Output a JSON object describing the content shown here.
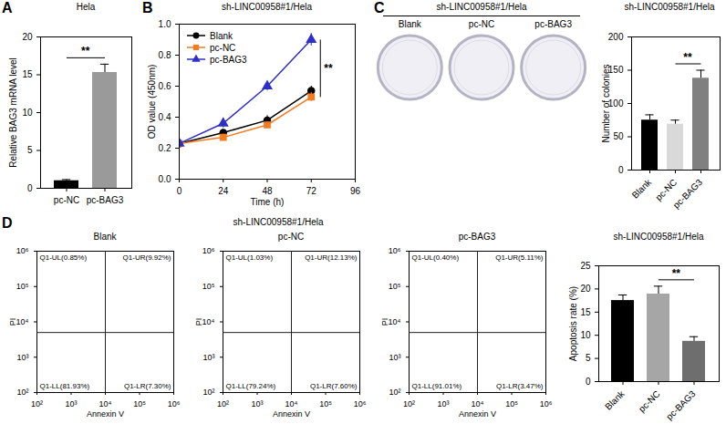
{
  "chart_data": [
    {
      "panel": "A",
      "type": "bar",
      "title": "Hela",
      "categories": [
        "pc-NC",
        "pc-BAG3"
      ],
      "values": [
        1.0,
        15.3
      ],
      "errors": [
        0.15,
        1.1
      ],
      "colors": [
        "#000000",
        "#9a9a9a"
      ],
      "y_label": "Relative BAG3 mRNA level",
      "ylim": [
        0,
        20
      ],
      "yticks": [
        0,
        5,
        10,
        15,
        20
      ],
      "annotations": [
        {
          "text": "**",
          "between": [
            "pc-NC",
            "pc-BAG3"
          ]
        }
      ]
    },
    {
      "panel": "B",
      "type": "line",
      "title": "sh-LINC00958#1/Hela",
      "x": [
        0,
        24,
        48,
        72
      ],
      "series": [
        {
          "name": "Blank",
          "color": "#000000",
          "marker": "circle",
          "values": [
            0.23,
            0.3,
            0.38,
            0.57
          ],
          "errors": [
            0.01,
            0.02,
            0.03,
            0.03
          ]
        },
        {
          "name": "pc-NC",
          "color": "#f47b20",
          "marker": "square",
          "values": [
            0.23,
            0.27,
            0.35,
            0.53
          ],
          "errors": [
            0.01,
            0.02,
            0.02,
            0.03
          ]
        },
        {
          "name": "pc-BAG3",
          "color": "#2e2ec8",
          "marker": "triangle",
          "values": [
            0.23,
            0.36,
            0.6,
            0.9
          ],
          "errors": [
            0.01,
            0.03,
            0.03,
            0.04
          ]
        }
      ],
      "x_label": "Time (h)",
      "y_label": "OD value (450nm)",
      "xlim": [
        0,
        96
      ],
      "xticks": [
        0,
        24,
        48,
        72,
        96
      ],
      "ylim": [
        0,
        1
      ],
      "yticks": [
        {
          "value": 0,
          "label": "0.0"
        },
        0.2,
        0.4,
        0.6,
        0.8,
        {
          "value": 1,
          "label": "1.0"
        }
      ],
      "legend": "upper left",
      "annotations": [
        {
          "text": "**",
          "between": [
            "pc-BAG3",
            "pc-NC"
          ],
          "x": 72
        }
      ]
    },
    {
      "panel": "C",
      "type": "image",
      "title": "sh-LINC00958#1/Hela",
      "categories": [
        "Blank",
        "pc-NC",
        "pc-BAG3"
      ]
    },
    {
      "type": "bar",
      "title": "sh-LINC00958#1/Hela",
      "categories": [
        "Blank",
        "pc-NC",
        "pc-BAG3"
      ],
      "values": [
        75,
        69,
        138
      ],
      "errors": [
        8,
        6,
        12
      ],
      "colors": [
        "#000000",
        "#d9d9d9",
        "#808080"
      ],
      "y_label": "Number of colonies",
      "ylim": [
        0,
        200
      ],
      "yticks": [
        0,
        50,
        100,
        150,
        200
      ],
      "annotations": [
        {
          "text": "**",
          "between": [
            "pc-NC",
            "pc-BAG3"
          ]
        }
      ]
    },
    {
      "panel": "D",
      "type": "flow_cytometry",
      "title": "sh-LINC00958#1/Hela",
      "x_label": "Annexin V",
      "y_label": "PI",
      "log": true,
      "xlim": [
        100,
        1000000
      ],
      "xticks": [
        {
          "value": 100,
          "label": "10²"
        },
        {
          "value": 1000,
          "label": "10³"
        },
        {
          "value": 10000,
          "label": "10⁴"
        },
        {
          "value": 100000,
          "label": "10⁵"
        },
        {
          "value": 1000000,
          "label": "10⁶"
        }
      ],
      "ylim": [
        100,
        1000000
      ],
      "yticks": [
        {
          "value": 100,
          "label": "10²"
        },
        {
          "value": 1000,
          "label": "10³"
        },
        {
          "value": 10000,
          "label": "10⁴"
        },
        {
          "value": 100000,
          "label": "10⁵"
        },
        {
          "value": 1000000,
          "label": "10⁶"
        }
      ],
      "gates": {
        "x": 10000,
        "y": 5000
      },
      "panels": [
        {
          "title": "Blank",
          "quadrants": {
            "UL": "Q1-UL(0.85%)",
            "UR": "Q1-UR(9.92%)",
            "LL": "Q1-LL(81.93%)",
            "LR": "Q1-LR(7.30%)"
          }
        },
        {
          "title": "pc-NC",
          "quadrants": {
            "UL": "Q1-UL(1.03%)",
            "UR": "Q1-UR(12.13%)",
            "LL": "Q1-LL(79.24%)",
            "LR": "Q1-LR(7.60%)"
          }
        },
        {
          "title": "pc-BAG3",
          "quadrants": {
            "UL": "Q1-UL(0.40%)",
            "UR": "Q1-UR(5.11%)",
            "LL": "Q1-LL(91.01%)",
            "LR": "Q1-LR(3.47%)"
          }
        }
      ]
    },
    {
      "type": "bar",
      "title": "sh-LINC00958#1/Hela",
      "categories": [
        "Blank",
        "pc-NC",
        "pc-BAG3"
      ],
      "values": [
        17.5,
        18.9,
        8.7
      ],
      "errors": [
        1.2,
        1.7,
        1.0
      ],
      "colors": [
        "#000000",
        "#a6a6a6",
        "#6e6e6e"
      ],
      "y_label": "Apoptosis rate (%)",
      "ylim": [
        0,
        25
      ],
      "yticks": [
        0,
        5,
        10,
        15,
        20,
        25
      ],
      "annotations": [
        {
          "text": "**",
          "between": [
            "pc-NC",
            "pc-BAG3"
          ]
        }
      ]
    }
  ]
}
